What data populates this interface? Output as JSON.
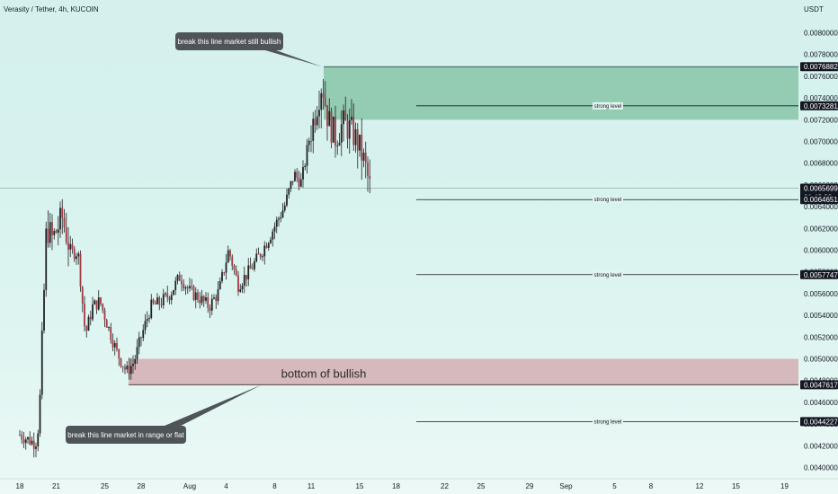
{
  "header": {
    "title": "Verasity / Tether, 4h, KUCOIN",
    "currency": "USDT"
  },
  "colors": {
    "up": "#26a69a",
    "down": "#a23b46",
    "candle": "#222222",
    "green_zone": "#7cbf9e",
    "red_zone": "#d4b3b6",
    "callout_bg": "#4e5457"
  },
  "chart_data": {
    "type": "candlestick",
    "title": "Verasity / Tether, 4h, KUCOIN",
    "y_unit": "USDT",
    "ylim": [
      0.00398,
      0.00826
    ],
    "y_ticks": [
      0.004,
      0.0042,
      0.0044,
      0.0046,
      0.0048,
      0.005,
      0.0052,
      0.0054,
      0.0056,
      0.0058,
      0.006,
      0.0062,
      0.0064,
      0.0066,
      0.0068,
      0.007,
      0.0072,
      0.0074,
      0.0076,
      0.0078,
      0.008
    ],
    "y_tick_labels": [
      "0.00400000",
      "0.00420000",
      "0.00440000",
      "0.00460000",
      "0.00480000",
      "0.00500000",
      "0.00520000",
      "0.00540000",
      "0.00560000",
      "0.00580000",
      "0.00600000",
      "0.00620000",
      "0.00640000",
      "0.00660000",
      "0.00680000",
      "0.00700000",
      "0.00720000",
      "0.00740000",
      "0.00760000",
      "0.00780000",
      "0.00800000"
    ],
    "x_tick_labels": [
      "18",
      "21",
      "25",
      "28",
      "Aug",
      "4",
      "8",
      "11",
      "15",
      "18",
      "22",
      "25",
      "29",
      "Sep",
      "5",
      "8",
      "12",
      "15",
      "19"
    ],
    "x_tick_days": [
      0,
      3,
      7,
      10,
      14,
      17,
      21,
      24,
      28,
      31,
      35,
      38,
      42,
      45,
      49,
      52,
      56,
      59,
      63
    ],
    "candle_path": [
      [
        0,
        0.0043
      ],
      [
        1.3,
        0.00422
      ],
      [
        1.6,
        0.00442
      ],
      [
        2.2,
        0.00622
      ],
      [
        2.7,
        0.0061
      ],
      [
        3.5,
        0.0063
      ],
      [
        4.2,
        0.00598
      ],
      [
        4.8,
        0.00598
      ],
      [
        5.4,
        0.00522
      ],
      [
        6.0,
        0.00548
      ],
      [
        6.6,
        0.00553
      ],
      [
        7.2,
        0.00532
      ],
      [
        8.0,
        0.00506
      ],
      [
        8.8,
        0.00488
      ],
      [
        9.4,
        0.00497
      ],
      [
        10.0,
        0.0052
      ],
      [
        10.8,
        0.00548
      ],
      [
        11.6,
        0.00552
      ],
      [
        12.4,
        0.0056
      ],
      [
        13.2,
        0.00576
      ],
      [
        14.0,
        0.00562
      ],
      [
        14.8,
        0.00556
      ],
      [
        15.6,
        0.00548
      ],
      [
        16.4,
        0.00562
      ],
      [
        17.2,
        0.006
      ],
      [
        18.0,
        0.00568
      ],
      [
        19.0,
        0.00582
      ],
      [
        20.0,
        0.006
      ],
      [
        21.0,
        0.00622
      ],
      [
        21.8,
        0.0064
      ],
      [
        22.6,
        0.0067
      ],
      [
        23.2,
        0.00662
      ],
      [
        23.8,
        0.007
      ],
      [
        24.4,
        0.0073
      ],
      [
        24.9,
        0.00755
      ],
      [
        25.4,
        0.0072
      ],
      [
        26.0,
        0.00704
      ],
      [
        26.6,
        0.00716
      ],
      [
        27.2,
        0.00712
      ],
      [
        27.8,
        0.007
      ],
      [
        28.4,
        0.0068
      ],
      [
        28.8,
        0.0066
      ],
      [
        29.0,
        0.00652
      ]
    ],
    "candle_bodies_hi_lo_sample": [
      {
        "day": 2.2,
        "high": 0.00665,
        "low": 0.00586
      },
      {
        "day": 8.8,
        "high": 0.00498,
        "low": 0.00476
      },
      {
        "day": 24.9,
        "high": 0.0077,
        "low": 0.00732
      },
      {
        "day": 29.0,
        "high": 0.00662,
        "low": 0.00642
      }
    ],
    "horizontal_levels": [
      {
        "label": "strong level",
        "price": 0.00732811,
        "price_label": "0.00732811"
      },
      {
        "label": "strong level",
        "price": 0.00646514,
        "price_label": "0.00646514"
      },
      {
        "label": "strong level",
        "price": 0.00577476,
        "price_label": "0.00577476"
      },
      {
        "label": "strong level",
        "price": 0.00442277,
        "price_label": "0.00442277"
      }
    ],
    "zones": [
      {
        "top": 0.00768825,
        "bottom": 0.0072,
        "color": "green"
      },
      {
        "top": 0.005,
        "bottom": 0.0047617,
        "color": "red",
        "text": "bottom of bullish"
      }
    ],
    "price_badges": [
      {
        "price": 0.00768825,
        "label": "0.00768825"
      },
      {
        "price": 0.0065699,
        "label": "0.00656990",
        "sub": "01:48:22"
      },
      {
        "price": 0.0047617,
        "label": "0.00476170"
      }
    ],
    "annotations": [
      {
        "text": "break this line market still bullish",
        "anchor_day": 24.9,
        "anchor_price": 0.00768825
      },
      {
        "text": "break this line market in range or flat",
        "anchor_day": 18.0,
        "anchor_price": 0.0047617
      }
    ]
  }
}
